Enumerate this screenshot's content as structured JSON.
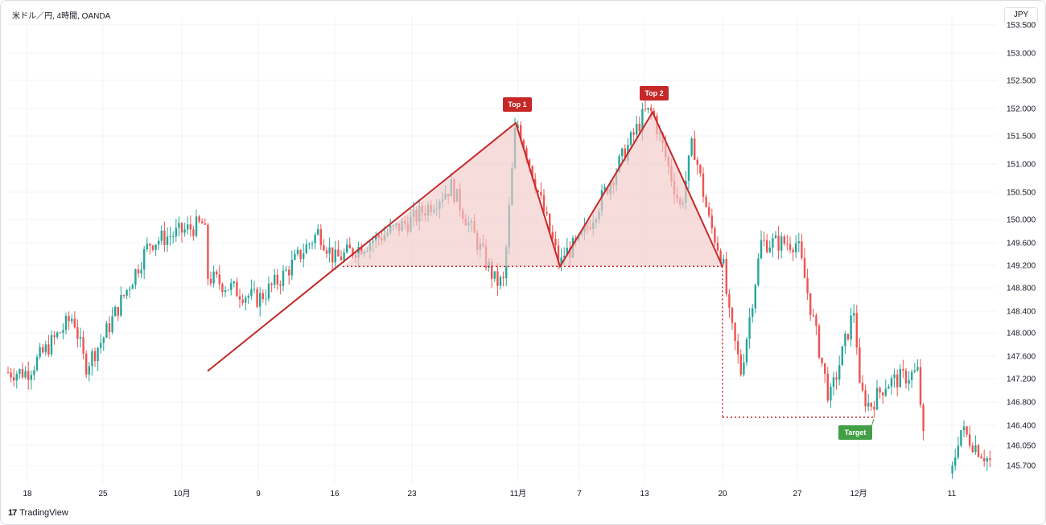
{
  "header": {
    "symbol": "米ドル／円, 4時間, OANDA",
    "currency": "JPY"
  },
  "footer": {
    "brand": "TradingView"
  },
  "colors": {
    "up": "#26a69a",
    "down": "#ef5350",
    "pattern": "#c62828",
    "fill": "#f3c9c9",
    "target": "#43a047"
  },
  "chart_data": {
    "type": "candlestick",
    "title": "",
    "y_axis": {
      "ticks": [
        153.5,
        153.0,
        152.5,
        152.0,
        151.5,
        151.0,
        150.5,
        150.0,
        149.6,
        149.2,
        148.8,
        148.4,
        148.0,
        147.6,
        147.2,
        146.8,
        146.4,
        146.05,
        145.7
      ],
      "tick_labels": [
        "153.500",
        "153.000",
        "152.500",
        "152.000",
        "151.500",
        "151.000",
        "150.500",
        "150.000",
        "149.600",
        "149.200",
        "148.800",
        "148.400",
        "148.000",
        "147.600",
        "147.200",
        "146.800",
        "146.400",
        "146.050",
        "145.700"
      ]
    },
    "x_axis": {
      "tick_labels": [
        "18",
        "25",
        "10月",
        "9",
        "16",
        "23",
        "11月",
        "7",
        "13",
        "20",
        "27",
        "12月",
        "11"
      ]
    },
    "price_path": [
      [
        "18",
        147.3
      ],
      [
        "25",
        147.9
      ],
      [
        "10月",
        149.8
      ],
      [
        "9",
        148.6
      ],
      [
        "16",
        149.3
      ],
      [
        "23",
        150.0
      ],
      [
        "11月",
        151.7
      ],
      [
        "7",
        149.6
      ],
      [
        "13",
        151.9
      ],
      [
        "20",
        149.3
      ],
      [
        "27",
        149.6
      ],
      [
        "12月",
        147.0
      ],
      [
        "11",
        145.5
      ]
    ],
    "pattern": {
      "name": "double top",
      "top1": {
        "label": "Top 1",
        "price": 151.73
      },
      "top2": {
        "label": "Top 2",
        "price": 151.92
      },
      "neckline": 149.18,
      "trend_start": 147.32,
      "target": {
        "label": "Target",
        "price": 146.5
      }
    }
  }
}
